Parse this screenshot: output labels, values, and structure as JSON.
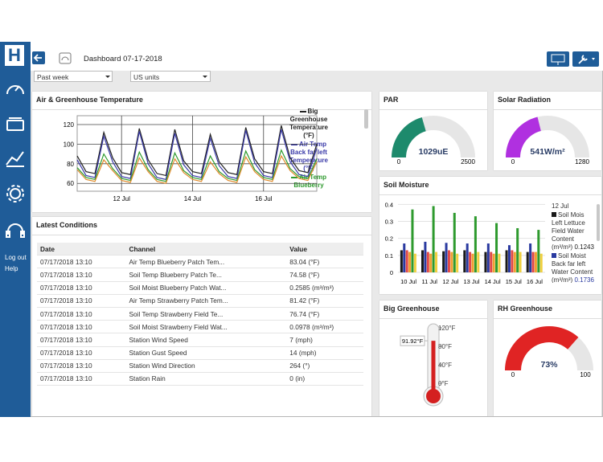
{
  "sidebar": {
    "logo": "H",
    "links": [
      "Log out",
      "Help"
    ]
  },
  "toolbar": {
    "title": "Dashboard 07-17-2018"
  },
  "filters": [
    "Past week",
    "US units"
  ],
  "chart_data": [
    {
      "type": "line",
      "title": "Air & Greenhouse Temperature",
      "categories": [
        null,
        null,
        null,
        null,
        null,
        "12 Jul",
        null,
        null,
        null,
        null,
        null,
        null,
        null,
        "14 Jul",
        null,
        null,
        null,
        null,
        null,
        null,
        null,
        "16 Jul",
        null,
        null,
        null,
        null,
        null,
        null
      ],
      "series": [
        {
          "name": "Big Greenhouse Temperature (°F)",
          "color": "#222222",
          "values": [
            88,
            72,
            70,
            112,
            86,
            71,
            69,
            116,
            84,
            70,
            68,
            115,
            83,
            72,
            70,
            110,
            82,
            71,
            69,
            117,
            85,
            72,
            70,
            119,
            86,
            73,
            71,
            100
          ]
        },
        {
          "name": "Air Temp Back far left Temperature (°F)",
          "color": "#3a3aa8",
          "values": [
            84,
            68,
            66,
            108,
            82,
            67,
            65,
            113,
            80,
            66,
            64,
            111,
            79,
            68,
            66,
            106,
            78,
            67,
            65,
            114,
            81,
            68,
            66,
            115,
            82,
            69,
            67,
            96
          ]
        },
        {
          "name": "Air Temp Blueberry",
          "color": "#2e9a2e",
          "values": [
            76,
            66,
            64,
            90,
            75,
            65,
            63,
            92,
            74,
            64,
            62,
            91,
            73,
            66,
            64,
            88,
            72,
            65,
            63,
            93,
            74,
            66,
            64,
            94,
            75,
            67,
            65,
            85
          ]
        },
        {
          "color": "#e08a2a",
          "values": [
            74,
            64,
            62,
            84,
            73,
            63,
            61,
            86,
            72,
            62,
            60,
            85,
            71,
            64,
            62,
            82,
            70,
            63,
            61,
            87,
            72,
            64,
            62,
            88,
            73,
            65,
            63,
            82
          ]
        }
      ],
      "ylim": [
        52,
        129
      ],
      "yticks": [
        60,
        80,
        100,
        120
      ],
      "grid": true
    },
    {
      "type": "gauge",
      "title": "PAR",
      "value": 1029,
      "value_label": "1029uE",
      "min": 0,
      "max": 2500,
      "color": "#1d8a6c"
    },
    {
      "type": "gauge",
      "title": "Solar Radiation",
      "value": 541,
      "value_label": "541W/m²",
      "min": 0,
      "max": 1280,
      "color": "#b030e0"
    },
    {
      "type": "bar",
      "title": "Soil Moisture",
      "categories": [
        "10 Jul",
        "11 Jul",
        "12 Jul",
        "13 Jul",
        "14 Jul",
        "15 Jul",
        "16 Jul"
      ],
      "series": [
        {
          "name": "Soil Mois Left Lettuce Field Water Content (m³/m³)",
          "color": "#1a1a1a",
          "values": [
            0.13,
            0.13,
            0.1243,
            0.13,
            0.12,
            0.13,
            0.12
          ]
        },
        {
          "name": "Soil Moist Back far left Water Content (m³/m³)",
          "color": "#2a3aa0",
          "values": [
            0.17,
            0.18,
            0.1736,
            0.17,
            0.17,
            0.16,
            0.17
          ]
        },
        {
          "color": "#e04848",
          "values": [
            0.13,
            0.12,
            0.13,
            0.12,
            0.12,
            0.13,
            0.12
          ]
        },
        {
          "color": "#f0a030",
          "values": [
            0.12,
            0.11,
            0.12,
            0.11,
            0.11,
            0.12,
            0.12
          ]
        },
        {
          "color": "#2e9a2e",
          "values": [
            0.37,
            0.39,
            0.35,
            0.33,
            0.29,
            0.26,
            0.25
          ]
        },
        {
          "color": "#f0d040",
          "values": [
            0.11,
            0.12,
            0.11,
            0.12,
            0.11,
            0.12,
            0.11
          ]
        }
      ],
      "legend_category": 2,
      "ylim": [
        0,
        0.43
      ],
      "yticks": [
        0,
        0.1,
        0.2,
        0.3,
        0.4
      ]
    },
    {
      "type": "thermometer",
      "title": "Big Greenhouse",
      "value": 91.92,
      "value_label": "91.92°F",
      "color": "#d42020",
      "ylim": [
        0,
        120
      ],
      "yticks": [
        {
          "value": 0,
          "label": "0°F"
        },
        {
          "value": 40,
          "label": "40°F"
        },
        {
          "value": 80,
          "label": "80°F"
        },
        {
          "value": 120,
          "label": "120°F"
        }
      ]
    },
    {
      "type": "gauge",
      "title": "RH Greenhouse",
      "value": 73,
      "value_label": "73%",
      "min": 0,
      "max": 100,
      "color": "#e02424"
    }
  ],
  "latest_conditions": {
    "title": "Latest Conditions",
    "columns": [
      "Date",
      "Channel",
      "Value"
    ],
    "rows": [
      [
        "07/17/2018 13:10",
        "Air Temp Blueberry Patch Tem...",
        "83.04 (°F)"
      ],
      [
        "07/17/2018 13:10",
        "Soil Temp Blueberry Patch Te...",
        "74.58 (°F)"
      ],
      [
        "07/17/2018 13:10",
        "Soil Moist Blueberry Patch Wat...",
        "0.2585 (m³/m³)"
      ],
      [
        "07/17/2018 13:10",
        "Air Temp Strawberry Patch Tem...",
        "81.42 (°F)"
      ],
      [
        "07/17/2018 13:10",
        "Soil Temp Strawberry Field Te...",
        "76.74 (°F)"
      ],
      [
        "07/17/2018 13:10",
        "Soil Moist Strawberry Field Wat...",
        "0.0978 (m³/m³)"
      ],
      [
        "07/17/2018 13:10",
        "Station Wind Speed",
        "7 (mph)"
      ],
      [
        "07/17/2018 13:10",
        "Station Gust Speed",
        "14 (mph)"
      ],
      [
        "07/17/2018 13:10",
        "Station Wind Direction",
        "264 (°)"
      ],
      [
        "07/17/2018 13:10",
        "Station Rain",
        "0 (in)"
      ]
    ]
  }
}
